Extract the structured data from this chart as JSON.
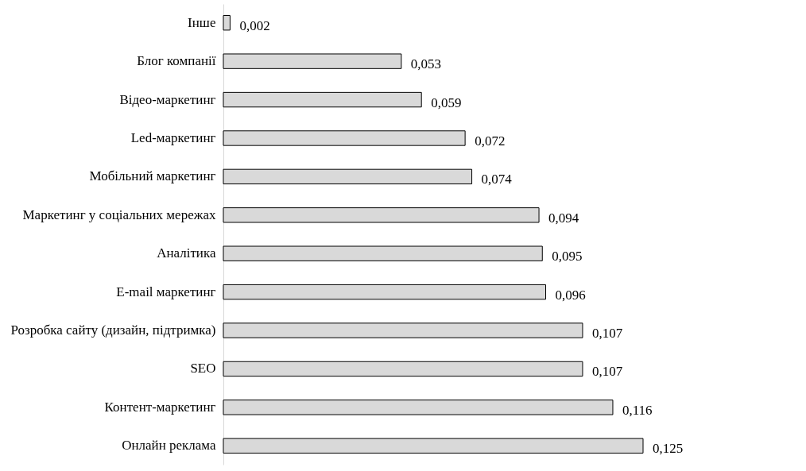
{
  "chart_data": {
    "type": "bar",
    "orientation": "horizontal",
    "categories": [
      "Інше",
      "Блог компанії",
      "Відео-маркетинг",
      "Led-маркетинг",
      "Мобільний маркетинг",
      "Маркетинг у соціальних мережах",
      "Аналітика",
      "E-mail маркетинг",
      "Розробка сайту (дизайн,  підтримка)",
      "SEO",
      "Контент-маркетинг",
      "Онлайн  реклама"
    ],
    "values": [
      0.002,
      0.053,
      0.059,
      0.072,
      0.074,
      0.094,
      0.095,
      0.096,
      0.107,
      0.107,
      0.116,
      0.125
    ],
    "value_labels": [
      "0,002",
      "0,053",
      "0,059",
      "0,072",
      "0,074",
      "0,094",
      "0,095",
      "0,096",
      "0,107",
      "0,107",
      "0,116",
      "0,125"
    ],
    "color": "#d9d9d9"
  }
}
